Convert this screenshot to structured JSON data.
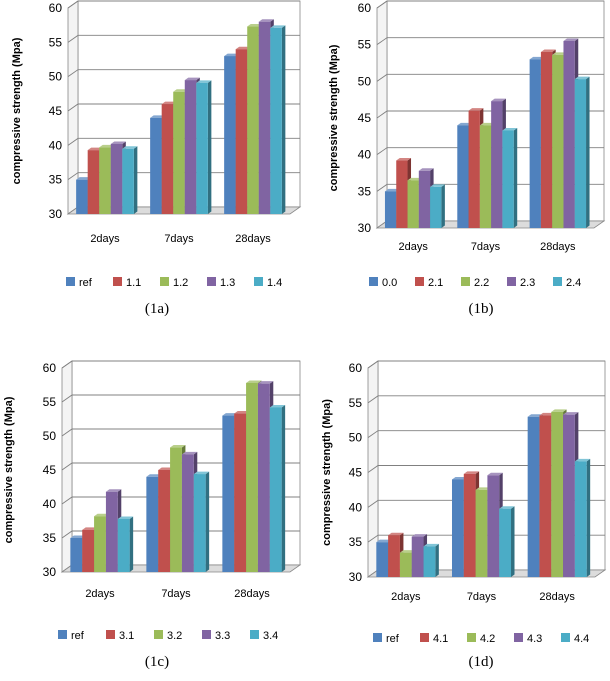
{
  "series_colors": [
    "#4f81bd",
    "#c0504d",
    "#9bbb59",
    "#8064a2",
    "#4bacc6"
  ],
  "chart_data": [
    {
      "type": "bar",
      "caption": "(1a)",
      "ylabel": "compressive strength (Mpa)",
      "ylim": [
        30,
        60
      ],
      "yticks": [
        30,
        35,
        40,
        45,
        50,
        55,
        60
      ],
      "categories": [
        "2days",
        "7days",
        "28days"
      ],
      "series": [
        {
          "name": "ref",
          "values": [
            35.0,
            44.0,
            53.0
          ]
        },
        {
          "name": "1.1",
          "values": [
            39.3,
            46.0,
            54.0
          ]
        },
        {
          "name": "1.2",
          "values": [
            39.7,
            47.8,
            57.3
          ]
        },
        {
          "name": "1.3",
          "values": [
            40.2,
            49.5,
            58.0
          ]
        },
        {
          "name": "1.4",
          "values": [
            39.5,
            49.1,
            57.1
          ]
        }
      ],
      "legend": "bottom"
    },
    {
      "type": "bar",
      "caption": "(1b)",
      "ylabel": "compressive strength (Mpa)",
      "ylim": [
        30,
        60
      ],
      "yticks": [
        30,
        35,
        40,
        45,
        50,
        55,
        60
      ],
      "categories": [
        "2days",
        "7days",
        "28days"
      ],
      "series": [
        {
          "name": "0.0",
          "values": [
            35.0,
            44.0,
            53.0
          ]
        },
        {
          "name": "2.1",
          "values": [
            39.2,
            46.0,
            54.0
          ]
        },
        {
          "name": "2.2",
          "values": [
            36.5,
            44.0,
            53.6
          ]
        },
        {
          "name": "2.3",
          "values": [
            37.8,
            47.3,
            55.5
          ]
        },
        {
          "name": "2.4",
          "values": [
            35.6,
            43.3,
            50.3
          ]
        }
      ],
      "legend": "bottom"
    },
    {
      "type": "bar",
      "caption": "(1c)",
      "ylabel": "compressive strength (Mpa)",
      "ylim": [
        30,
        60
      ],
      "yticks": [
        30,
        35,
        40,
        45,
        50,
        55,
        60
      ],
      "categories": [
        "2days",
        "7days",
        "28days"
      ],
      "series": [
        {
          "name": "ref",
          "values": [
            35.0,
            44.0,
            53.0
          ]
        },
        {
          "name": "3.1",
          "values": [
            36.2,
            45.0,
            53.3
          ]
        },
        {
          "name": "3.2",
          "values": [
            38.2,
            48.3,
            57.8
          ]
        },
        {
          "name": "3.3",
          "values": [
            41.8,
            47.3,
            57.7
          ]
        },
        {
          "name": "3.4",
          "values": [
            37.8,
            44.4,
            54.2
          ]
        }
      ],
      "legend": "bottom"
    },
    {
      "type": "bar",
      "caption": "(1d)",
      "ylabel": "compressive strength (Mpa)",
      "ylim": [
        30,
        60
      ],
      "yticks": [
        30,
        35,
        40,
        45,
        50,
        55,
        60
      ],
      "categories": [
        "2days",
        "7days",
        "28days"
      ],
      "series": [
        {
          "name": "ref",
          "values": [
            35.0,
            44.0,
            53.0
          ]
        },
        {
          "name": "4.1",
          "values": [
            36.0,
            44.8,
            53.2
          ]
        },
        {
          "name": "4.2",
          "values": [
            33.5,
            42.5,
            53.7
          ]
        },
        {
          "name": "4.3",
          "values": [
            35.8,
            44.6,
            53.3
          ]
        },
        {
          "name": "4.4",
          "values": [
            34.4,
            39.8,
            46.6
          ]
        }
      ],
      "legend": "bottom"
    }
  ]
}
